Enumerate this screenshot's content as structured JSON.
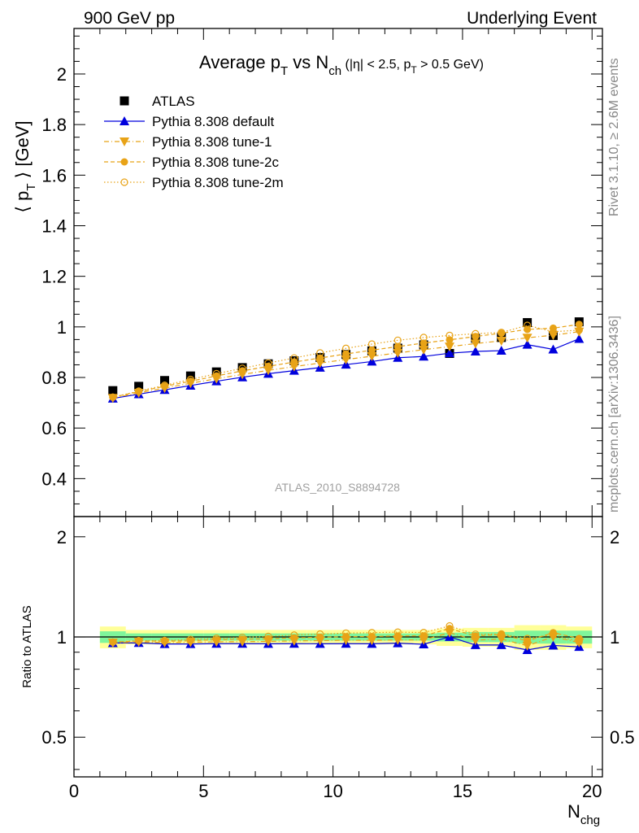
{
  "header": {
    "left": "900 GeV pp",
    "right": "Underlying Event"
  },
  "title": {
    "main": "Average p",
    "main_sub": "T",
    "vs": " vs N",
    "vs_sub": "ch",
    "cut_a": " (|η| < 2.5, p",
    "cut_sub": "T",
    "cut_b": " > 0.5 GeV)"
  },
  "side_labels": {
    "rivet": "Rivet 3.1.10, ≥ 2.6M events",
    "mcplots": "mcplots.cern.ch [arXiv:1306.3436]"
  },
  "watermark": "ATLAS_2010_S8894728",
  "axes": {
    "ylabel_main_a": "⟨ p",
    "ylabel_main_sub": "T",
    "ylabel_main_b": " ⟩ [GeV]",
    "ylabel_ratio": "Ratio to ATLAS",
    "xlabel": "N",
    "xlabel_sub": "chg"
  },
  "colors": {
    "atlas": "#000000",
    "default": "#0000dd",
    "tunes": "#e8a317",
    "band_inner": "#7ff59b",
    "band_outer": "#ffff99"
  },
  "chart_data": [
    {
      "type": "scatter",
      "panel": "main",
      "title": "Average pT vs Nch (|η| < 2.5, pT > 0.5 GeV)",
      "xlabel": "Nchg",
      "ylabel": "⟨ pT ⟩ [GeV]",
      "xlim": [
        0,
        20.4
      ],
      "ylim": [
        0.25,
        2.18
      ],
      "yticks": [
        "0.4",
        "0.6",
        "0.8",
        "1",
        "1.2",
        "1.4",
        "1.6",
        "1.8",
        "2"
      ],
      "xticks": [
        "0",
        "5",
        "10",
        "15",
        "20"
      ],
      "legend_position": "top-left",
      "x": [
        1.5,
        2.5,
        3.5,
        4.5,
        5.5,
        6.5,
        7.5,
        8.5,
        9.5,
        10.5,
        11.5,
        12.5,
        13.5,
        14.5,
        15.5,
        16.5,
        17.5,
        18.5,
        19.5
      ],
      "series": [
        {
          "name": "ATLAS",
          "marker": "square",
          "values": [
            0.748,
            0.765,
            0.788,
            0.806,
            0.822,
            0.839,
            0.854,
            0.866,
            0.879,
            0.891,
            0.905,
            0.916,
            0.929,
            0.895,
            0.955,
            0.958,
            1.017,
            0.966,
            1.02
          ]
        },
        {
          "name": "Pythia 8.308 default",
          "marker": "triangle-up",
          "line": "solid",
          "values": [
            0.717,
            0.734,
            0.751,
            0.768,
            0.785,
            0.801,
            0.815,
            0.827,
            0.839,
            0.851,
            0.863,
            0.878,
            0.883,
            0.896,
            0.903,
            0.906,
            0.93,
            0.911,
            0.953
          ]
        },
        {
          "name": "Pythia 8.308 tune-1",
          "marker": "triangle-down",
          "line": "dashdot",
          "values": [
            0.719,
            0.739,
            0.758,
            0.777,
            0.795,
            0.812,
            0.828,
            0.843,
            0.857,
            0.871,
            0.884,
            0.897,
            0.91,
            0.922,
            0.934,
            0.945,
            0.957,
            0.967,
            0.981
          ]
        },
        {
          "name": "Pythia 8.308 tune-2c",
          "marker": "circle-filled",
          "line": "dashed",
          "values": [
            0.722,
            0.744,
            0.765,
            0.785,
            0.806,
            0.826,
            0.844,
            0.861,
            0.877,
            0.893,
            0.908,
            0.922,
            0.936,
            0.949,
            0.962,
            0.975,
            0.99,
            0.995,
            1.01
          ]
        },
        {
          "name": "Pythia 8.308 tune-2m",
          "marker": "circle-open",
          "line": "dotted",
          "values": [
            0.722,
            0.746,
            0.769,
            0.792,
            0.815,
            0.836,
            0.857,
            0.877,
            0.897,
            0.915,
            0.932,
            0.947,
            0.958,
            0.966,
            0.973,
            0.978,
            1.006,
            0.981,
            0.987
          ]
        }
      ]
    },
    {
      "type": "scatter",
      "panel": "ratio",
      "ylabel": "Ratio to ATLAS",
      "xlabel": "Nchg",
      "xlim": [
        0,
        20.4
      ],
      "ylim": [
        0.38,
        2.3
      ],
      "ylog": true,
      "yticks": [
        "0.5",
        "1",
        "2"
      ],
      "x": [
        1.5,
        2.5,
        3.5,
        4.5,
        5.5,
        6.5,
        7.5,
        8.5,
        9.5,
        10.5,
        11.5,
        12.5,
        13.5,
        14.5,
        15.5,
        16.5,
        17.5,
        18.5,
        19.5
      ],
      "band_inner": [
        0.04,
        0.025,
        0.025,
        0.025,
        0.025,
        0.025,
        0.025,
        0.025,
        0.025,
        0.025,
        0.025,
        0.025,
        0.025,
        0.03,
        0.035,
        0.035,
        0.045,
        0.045,
        0.045
      ],
      "band_outer": [
        0.075,
        0.05,
        0.05,
        0.05,
        0.05,
        0.05,
        0.05,
        0.05,
        0.05,
        0.05,
        0.05,
        0.05,
        0.05,
        0.06,
        0.065,
        0.065,
        0.085,
        0.085,
        0.075
      ],
      "series": [
        {
          "name": "Pythia 8.308 default",
          "values": [
            0.959,
            0.96,
            0.953,
            0.953,
            0.955,
            0.955,
            0.954,
            0.955,
            0.954,
            0.955,
            0.954,
            0.958,
            0.951,
            1.001,
            0.946,
            0.946,
            0.914,
            0.943,
            0.934
          ]
        },
        {
          "name": "Pythia 8.308 tune-1",
          "values": [
            0.961,
            0.966,
            0.962,
            0.964,
            0.967,
            0.968,
            0.97,
            0.973,
            0.975,
            0.978,
            0.977,
            0.979,
            0.98,
            1.03,
            0.978,
            0.986,
            0.941,
            1.001,
            0.962
          ]
        },
        {
          "name": "Pythia 8.308 tune-2c",
          "values": [
            0.965,
            0.973,
            0.971,
            0.974,
            0.981,
            0.985,
            0.988,
            0.994,
            0.998,
            1.002,
            1.003,
            1.007,
            1.008,
            1.06,
            1.007,
            1.018,
            0.973,
            1.03,
            0.99
          ]
        },
        {
          "name": "Pythia 8.308 tune-2m",
          "values": [
            0.965,
            0.975,
            0.976,
            0.983,
            0.991,
            0.997,
            1.004,
            1.013,
            1.02,
            1.027,
            1.03,
            1.034,
            1.031,
            1.079,
            1.019,
            1.021,
            0.989,
            1.016,
            0.968
          ]
        }
      ]
    }
  ]
}
